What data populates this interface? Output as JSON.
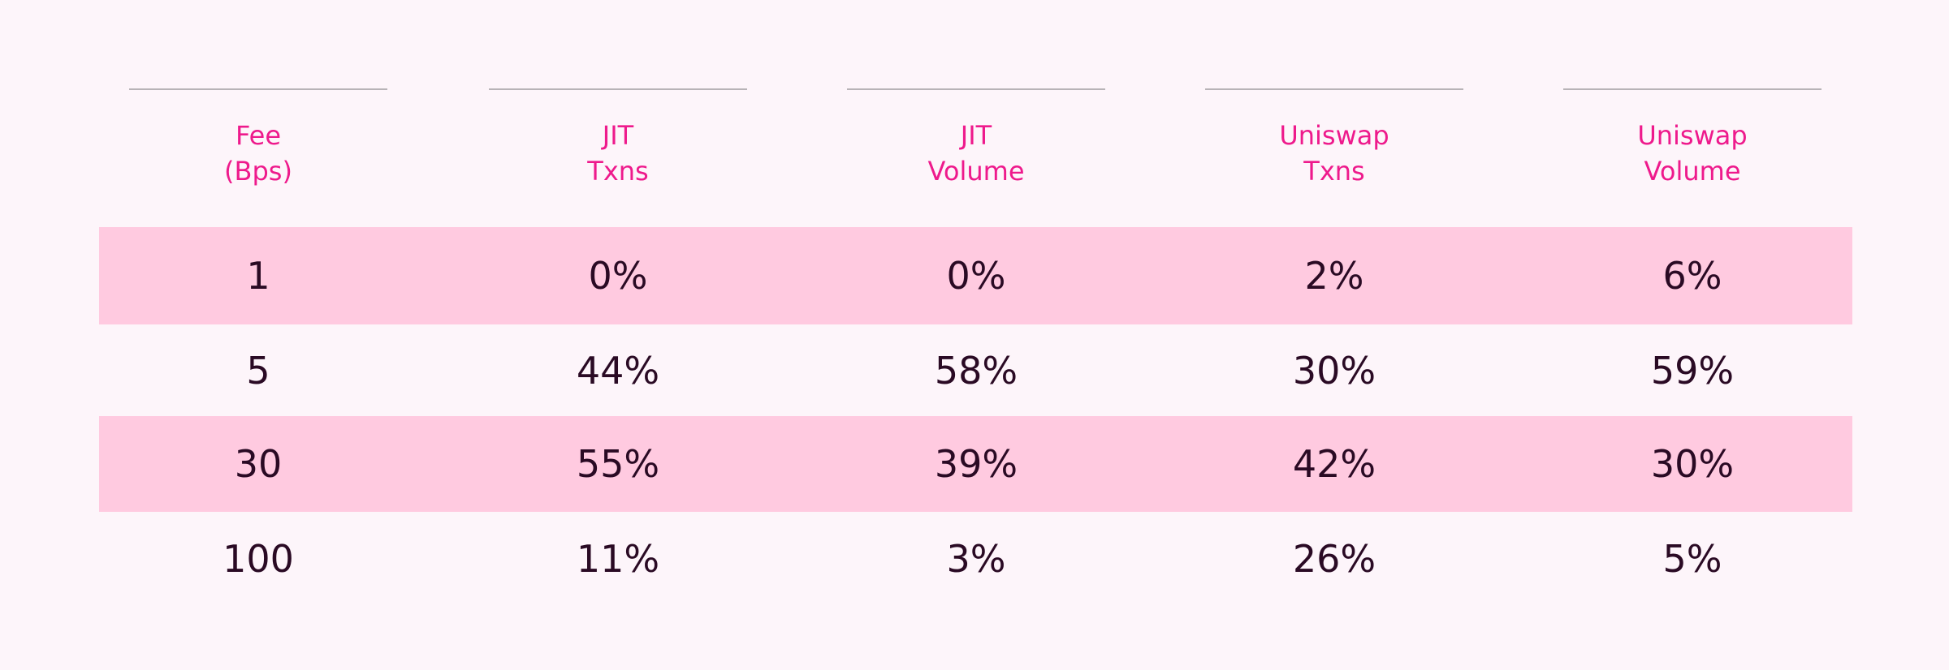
{
  "table": {
    "headers": [
      [
        "Fee",
        "(Bps)"
      ],
      [
        "JIT",
        "Txns"
      ],
      [
        "JIT",
        "Volume"
      ],
      [
        "Uniswap",
        "Txns"
      ],
      [
        "Uniswap",
        "Volume"
      ]
    ],
    "rows": [
      [
        "1",
        "0%",
        "0%",
        "2%",
        "6%"
      ],
      [
        "5",
        "44%",
        "58%",
        "30%",
        "59%"
      ],
      [
        "30",
        "55%",
        "39%",
        "42%",
        "30%"
      ],
      [
        "100",
        "11%",
        "3%",
        "26%",
        "5%"
      ]
    ]
  }
}
